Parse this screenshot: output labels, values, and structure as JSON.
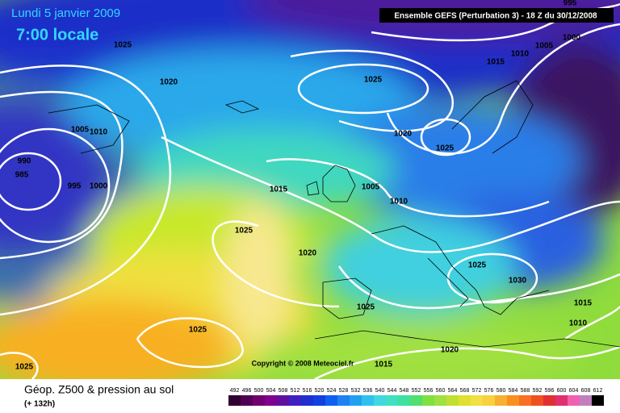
{
  "header": {
    "date": "Lundi 5 janvier 2009",
    "time": "7:00 locale",
    "run": "Ensemble GEFS (Perturbation 3)  - 18 Z du 30/12/2008"
  },
  "copyright": "Copyright © 2008 Meteociel.fr",
  "footer": {
    "title": "Géop. Z500 & pression au sol",
    "lead": "(+ 132h)"
  },
  "legend": {
    "labels": [
      492,
      496,
      500,
      504,
      508,
      512,
      516,
      520,
      524,
      528,
      532,
      536,
      540,
      544,
      548,
      552,
      556,
      560,
      564,
      568,
      572,
      576,
      580,
      584,
      588,
      592,
      596,
      600,
      604,
      608,
      612
    ]
  },
  "isobars": {
    "labels": [
      995,
      1025,
      1000,
      1005,
      1010,
      1015,
      1020,
      1025,
      1005,
      1010,
      1020,
      1025,
      990,
      985,
      995,
      1000,
      1015,
      1005,
      1010,
      1025,
      1020,
      1025,
      1030,
      1025,
      1015,
      1010,
      1025,
      1020,
      1015,
      1025
    ]
  }
}
